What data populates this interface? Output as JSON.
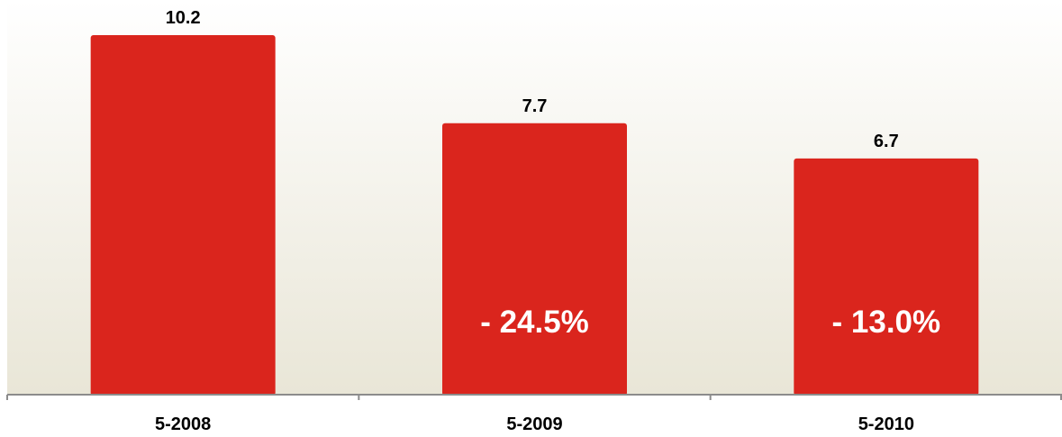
{
  "chart_data": {
    "type": "bar",
    "categories": [
      "5-2008",
      "5-2009",
      "5-2010"
    ],
    "values": [
      10.2,
      7.7,
      6.7
    ],
    "data_labels": [
      "10.2",
      "7.7",
      "6.7"
    ],
    "change_labels": [
      "",
      "- 24.5%",
      "- 13.0%"
    ],
    "ylim": [
      0,
      10.2
    ],
    "grid": false,
    "colors": {
      "bar": "#da251d",
      "axis": "#8c8c8c",
      "background_top": "#ffffff",
      "background_bottom": "#e9e6d7",
      "value_text": "#000000",
      "change_text": "#ffffff"
    }
  }
}
